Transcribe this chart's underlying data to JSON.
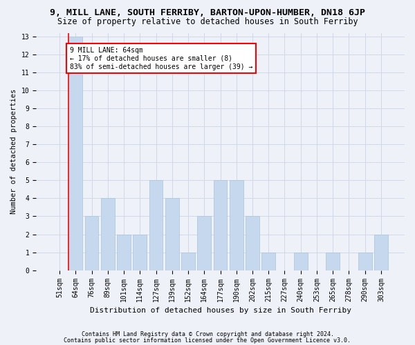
{
  "title": "9, MILL LANE, SOUTH FERRIBY, BARTON-UPON-HUMBER, DN18 6JP",
  "subtitle": "Size of property relative to detached houses in South Ferriby",
  "xlabel": "Distribution of detached houses by size in South Ferriby",
  "ylabel": "Number of detached properties",
  "categories": [
    "51sqm",
    "64sqm",
    "76sqm",
    "89sqm",
    "101sqm",
    "114sqm",
    "127sqm",
    "139sqm",
    "152sqm",
    "164sqm",
    "177sqm",
    "190sqm",
    "202sqm",
    "215sqm",
    "227sqm",
    "240sqm",
    "253sqm",
    "265sqm",
    "278sqm",
    "290sqm",
    "303sqm"
  ],
  "values": [
    0,
    13,
    3,
    4,
    2,
    2,
    5,
    4,
    1,
    3,
    5,
    5,
    3,
    1,
    0,
    1,
    0,
    1,
    0,
    1,
    2
  ],
  "bar_color": "#c5d8ed",
  "bar_edge_color": "#a8c4db",
  "red_line_index": 1,
  "annotation_text": "9 MILL LANE: 64sqm\n← 17% of detached houses are smaller (8)\n83% of semi-detached houses are larger (39) →",
  "ylim_max": 13,
  "yticks": [
    0,
    1,
    2,
    3,
    4,
    5,
    6,
    7,
    8,
    9,
    10,
    11,
    12,
    13
  ],
  "footer1": "Contains HM Land Registry data © Crown copyright and database right 2024.",
  "footer2": "Contains public sector information licensed under the Open Government Licence v3.0.",
  "background_color": "#eef2f8",
  "grid_color": "#d0d9ea",
  "title_fontsize": 9.5,
  "subtitle_fontsize": 8.5,
  "tick_fontsize": 7,
  "ylabel_fontsize": 7.5,
  "xlabel_fontsize": 8,
  "annotation_fontsize": 7,
  "footer_fontsize": 6,
  "annotation_box_facecolor": "white",
  "annotation_box_edgecolor": "red",
  "red_line_color": "red"
}
